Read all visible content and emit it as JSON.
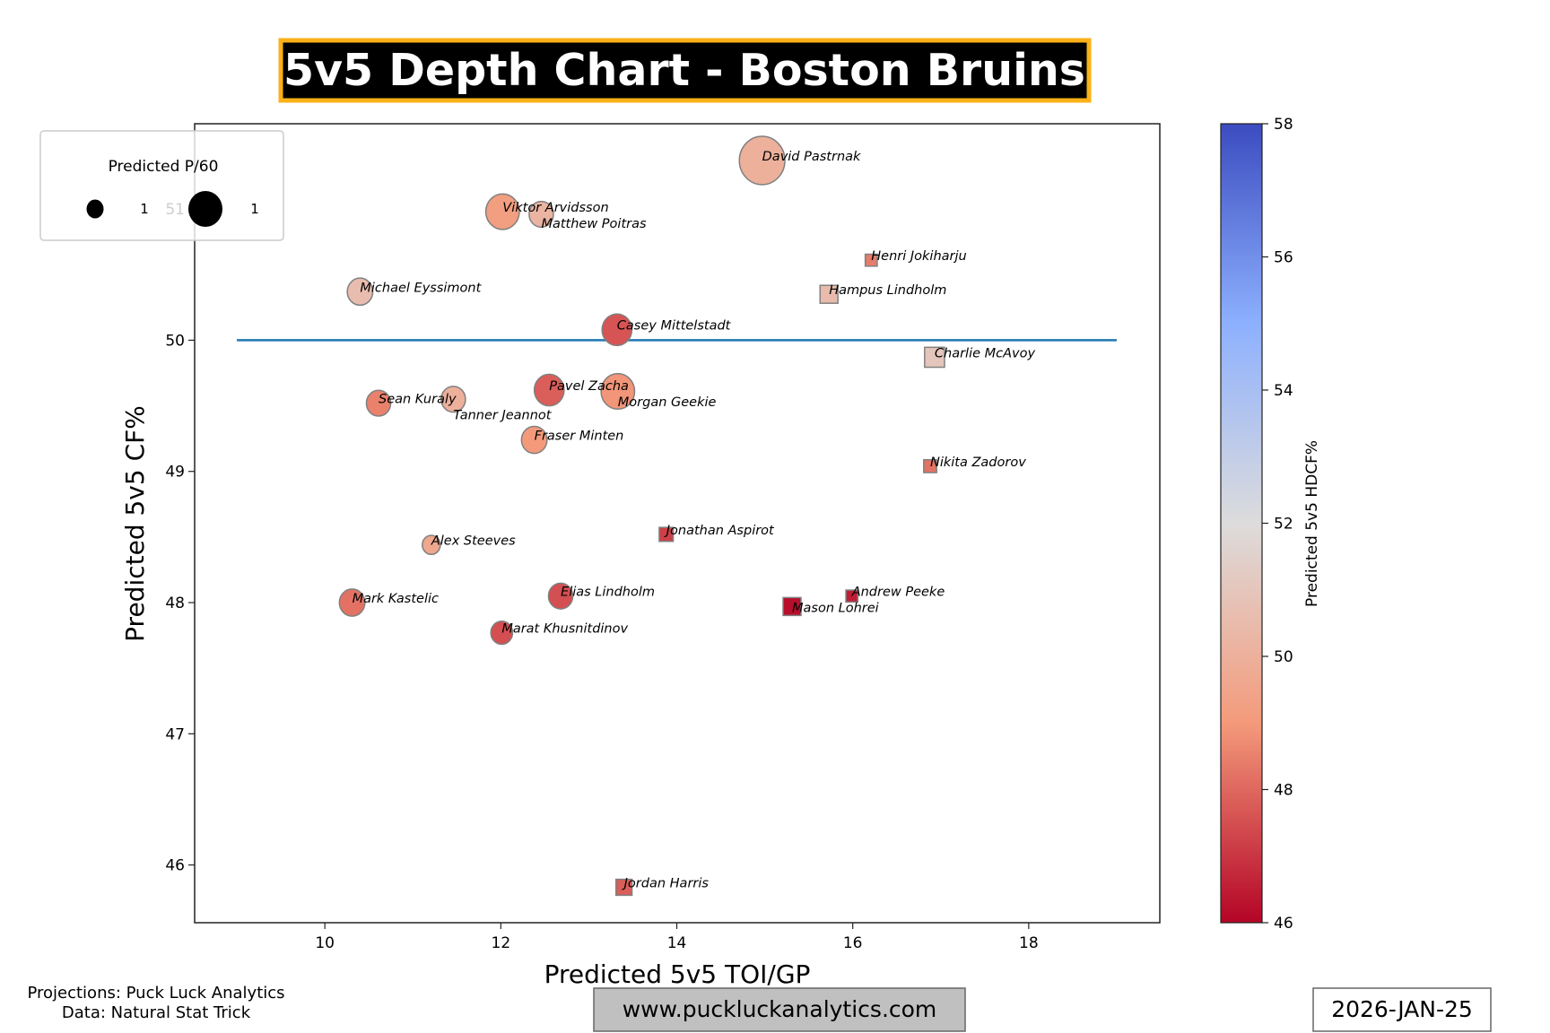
{
  "title": "5v5 Depth Chart - Boston Bruins",
  "colors": {
    "title_bg": "#000000",
    "title_border": "#fbb117",
    "title_text": "#ffffff",
    "ref_line": "#1f77b4",
    "marker_edge": "#808080",
    "url_box": "#c0c0c0"
  },
  "footer": {
    "credits_line1": "Projections: Puck Luck Analytics",
    "credits_line2": "Data: Natural Stat Trick",
    "url": "www.puckluckanalytics.com",
    "date": "2026-JAN-25"
  },
  "chart_data": {
    "type": "scatter",
    "title": "5v5 Depth Chart - Boston Bruins",
    "xlabel": "Predicted 5v5 TOI/GP",
    "ylabel": "Predicted 5v5 CF%",
    "xlim": [
      8.52,
      19.49
    ],
    "ylim": [
      45.56,
      51.65
    ],
    "xticks": [
      10,
      12,
      14,
      16,
      18
    ],
    "yticks": [
      46,
      47,
      48,
      49,
      50,
      51
    ],
    "grid": false,
    "reference_line": {
      "y": 50,
      "x_from": 9,
      "x_to": 19
    },
    "size_legend": {
      "title": "Predicted P/60",
      "labels": [
        "1",
        "1"
      ],
      "placement": "top-left"
    },
    "colorbar": {
      "label": "Predicted 5v5 HDCF%",
      "range": [
        46,
        58
      ],
      "ticks": [
        46,
        48,
        50,
        52,
        54,
        56,
        58
      ],
      "colormap": "coolwarm_r"
    },
    "marker_shapes": {
      "circle": "forward",
      "square": "defense"
    },
    "points": [
      {
        "name": "David Pastrnak",
        "x": 14.97,
        "y": 51.37,
        "hdcf": 50.0,
        "p60": 3.5,
        "shape": "circle"
      },
      {
        "name": "Viktor Arvidsson",
        "x": 12.02,
        "y": 50.98,
        "hdcf": 49.2,
        "p60": 1.9,
        "shape": "circle"
      },
      {
        "name": "Matthew Poitras",
        "x": 12.46,
        "y": 50.96,
        "hdcf": 50.2,
        "p60": 1.0,
        "shape": "circle"
      },
      {
        "name": "Henri Jokiharju",
        "x": 16.21,
        "y": 50.61,
        "hdcf": 48.4,
        "p60": 0.24,
        "shape": "square"
      },
      {
        "name": "Michael Eyssimont",
        "x": 10.4,
        "y": 50.37,
        "hdcf": 50.6,
        "p60": 1.1,
        "shape": "circle"
      },
      {
        "name": "Hampus Lindholm",
        "x": 15.73,
        "y": 50.35,
        "hdcf": 50.5,
        "p60": 0.54,
        "shape": "square"
      },
      {
        "name": "Casey Mittelstadt",
        "x": 13.32,
        "y": 50.08,
        "hdcf": 47.6,
        "p60": 1.5,
        "shape": "circle"
      },
      {
        "name": "Charlie McAvoy",
        "x": 16.93,
        "y": 49.87,
        "hdcf": 51.0,
        "p60": 0.67,
        "shape": "square"
      },
      {
        "name": "Pavel Zacha",
        "x": 12.55,
        "y": 49.62,
        "hdcf": 47.8,
        "p60": 1.5,
        "shape": "circle"
      },
      {
        "name": "Morgan Geekie",
        "x": 13.33,
        "y": 49.61,
        "hdcf": 48.9,
        "p60": 1.9,
        "shape": "circle"
      },
      {
        "name": "Sean Kuraly",
        "x": 10.61,
        "y": 49.52,
        "hdcf": 48.5,
        "p60": 1.0,
        "shape": "circle"
      },
      {
        "name": "Tanner Jeannot",
        "x": 11.46,
        "y": 49.55,
        "hdcf": 50.0,
        "p60": 1.0,
        "shape": "circle"
      },
      {
        "name": "Fraser Minten",
        "x": 12.38,
        "y": 49.24,
        "hdcf": 49.0,
        "p60": 1.1,
        "shape": "circle"
      },
      {
        "name": "Nikita Zadorov",
        "x": 16.88,
        "y": 49.04,
        "hdcf": 48.2,
        "p60": 0.28,
        "shape": "square"
      },
      {
        "name": "Jonathan Aspirot",
        "x": 13.88,
        "y": 48.52,
        "hdcf": 47.2,
        "p60": 0.33,
        "shape": "square"
      },
      {
        "name": "Alex Steeves",
        "x": 11.21,
        "y": 48.44,
        "hdcf": 49.6,
        "p60": 0.55,
        "shape": "circle"
      },
      {
        "name": "Mark Kastelic",
        "x": 10.31,
        "y": 48.0,
        "hdcf": 48.2,
        "p60": 1.1,
        "shape": "circle"
      },
      {
        "name": "Elias Lindholm",
        "x": 12.68,
        "y": 48.05,
        "hdcf": 47.5,
        "p60": 1.0,
        "shape": "circle"
      },
      {
        "name": "Andrew Peeke",
        "x": 15.99,
        "y": 48.05,
        "hdcf": 46.5,
        "p60": 0.24,
        "shape": "square"
      },
      {
        "name": "Mason Lohrei",
        "x": 15.31,
        "y": 47.97,
        "hdcf": 46.2,
        "p60": 0.54,
        "shape": "square"
      },
      {
        "name": "Marat Khusnitdinov",
        "x": 12.01,
        "y": 47.77,
        "hdcf": 47.5,
        "p60": 0.8,
        "shape": "circle"
      },
      {
        "name": "Jordan Harris",
        "x": 13.4,
        "y": 45.83,
        "hdcf": 47.8,
        "p60": 0.43,
        "shape": "square"
      }
    ]
  }
}
